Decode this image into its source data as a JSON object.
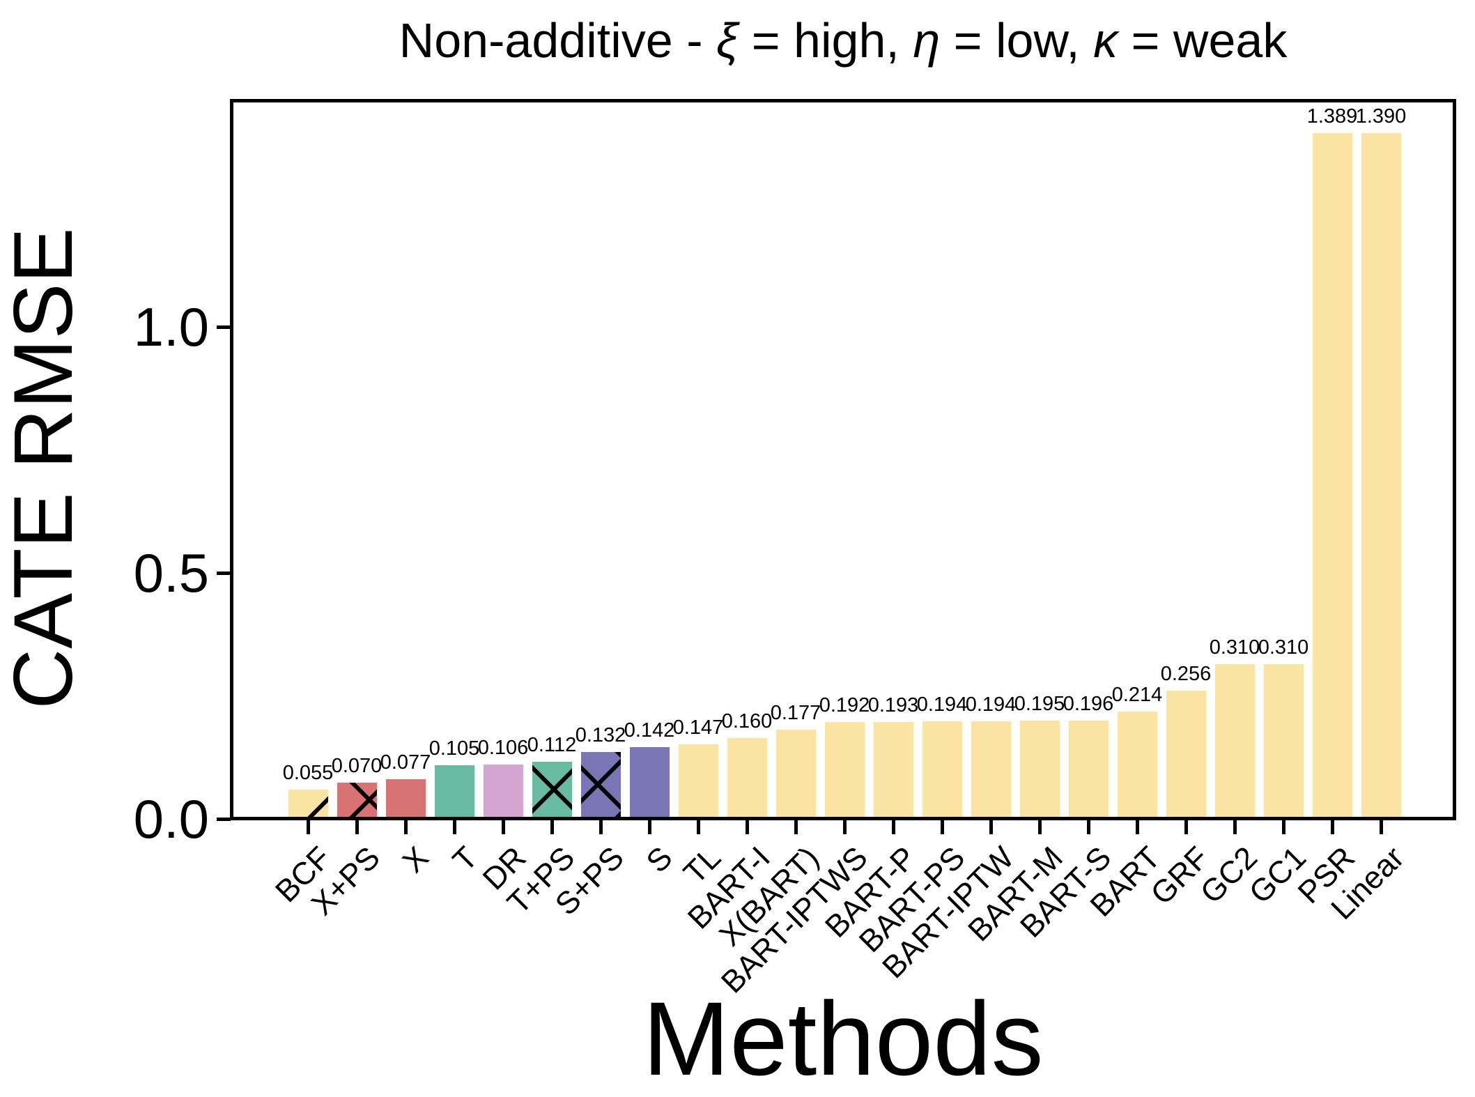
{
  "chart_data": {
    "type": "bar",
    "title": "Non-additive - ξ = high, η = low, κ = weak",
    "xlabel": "Methods",
    "ylabel": "CATE RMSE",
    "ylim": [
      0,
      1.46
    ],
    "grid": false,
    "legend_position": "none",
    "yticks": [
      {
        "value": 0.0,
        "label": "0.0"
      },
      {
        "value": 0.5,
        "label": "0.5"
      },
      {
        "value": 1.0,
        "label": "1.0"
      }
    ],
    "categories": [
      "BCF",
      "X+PS",
      "X",
      "T",
      "DR",
      "T+PS",
      "S+PS",
      "S",
      "TL",
      "BART-I",
      "X(BART)",
      "BART-IPTWS",
      "BART-P",
      "BART-PS",
      "BART-IPTW",
      "BART-M",
      "BART-S",
      "BART",
      "GRF",
      "GC2",
      "GC1",
      "PSR",
      "Linear"
    ],
    "values": [
      0.055,
      0.07,
      0.077,
      0.105,
      0.106,
      0.112,
      0.132,
      0.142,
      0.147,
      0.16,
      0.177,
      0.192,
      0.193,
      0.194,
      0.194,
      0.195,
      0.196,
      0.214,
      0.256,
      0.31,
      0.31,
      1.389,
      1.39
    ],
    "bar_value_labels": [
      "0.055",
      "0.070",
      "0.077",
      "0.105",
      "0.106",
      "0.112",
      "0.132",
      "0.142",
      "0.147",
      "0.160",
      "0.177",
      "0.192",
      "0.193",
      "0.194",
      "0.194",
      "0.195",
      "0.196",
      "0.214",
      "0.256",
      "0.310",
      "0.310",
      "1.389",
      "1.390"
    ],
    "bar_colors": [
      "#FAE3A3",
      "#D97373",
      "#D97373",
      "#68BAA0",
      "#D3A5D0",
      "#68BAA0",
      "#7A76B6",
      "#7A76B6",
      "#FAE3A3",
      "#FAE3A3",
      "#FAE3A3",
      "#FAE3A3",
      "#FAE3A3",
      "#FAE3A3",
      "#FAE3A3",
      "#FAE3A3",
      "#FAE3A3",
      "#FAE3A3",
      "#FAE3A3",
      "#FAE3A3",
      "#FAE3A3",
      "#FAE3A3",
      "#FAE3A3"
    ],
    "bar_hatches": [
      "/",
      "x",
      "",
      "",
      "",
      "x",
      "x",
      "",
      "",
      "",
      "",
      "",
      "",
      "",
      "",
      "",
      "",
      "",
      "",
      "",
      "",
      "",
      ""
    ]
  },
  "palette": {
    "yellow": "#FAE3A3",
    "red": "#D97373",
    "teal": "#68BAA0",
    "plum": "#D3A5D0",
    "purple": "#7A76B6",
    "hatch": "#000000",
    "axis": "#000000",
    "background": "#FFFFFF"
  }
}
